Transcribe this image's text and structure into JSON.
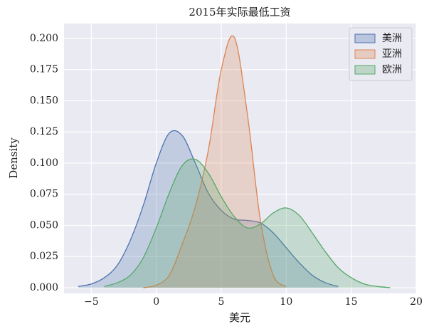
{
  "chart_data": {
    "type": "kde",
    "title": "2015年实际最低工资",
    "xlabel": "美元",
    "ylabel": "Density",
    "x": [
      -6,
      -5,
      -4,
      -3,
      -2,
      -1,
      0,
      1,
      2,
      3,
      4,
      5,
      6,
      7,
      8,
      9,
      10,
      11,
      12,
      13,
      14,
      15,
      16,
      17,
      18,
      19
    ],
    "series": [
      {
        "name": "美洲",
        "color": "#4c72b0",
        "values": [
          0.001,
          0.003,
          0.008,
          0.018,
          0.038,
          0.066,
          0.1,
          0.124,
          0.122,
          0.1,
          0.076,
          0.062,
          0.055,
          0.054,
          0.052,
          0.044,
          0.032,
          0.02,
          0.01,
          0.004,
          0.001,
          null,
          null,
          null,
          null,
          null
        ]
      },
      {
        "name": "亚洲",
        "color": "#dd8452",
        "values": [
          null,
          null,
          null,
          null,
          null,
          0.0,
          0.002,
          0.01,
          0.035,
          0.065,
          0.11,
          0.175,
          0.201,
          0.14,
          0.055,
          0.01,
          0.001,
          null,
          null,
          null,
          null,
          null,
          null,
          null,
          null,
          null
        ]
      },
      {
        "name": "欧洲",
        "color": "#55a868",
        "values": [
          null,
          null,
          0.001,
          0.004,
          0.01,
          0.024,
          0.048,
          0.076,
          0.098,
          0.103,
          0.092,
          0.073,
          0.057,
          0.048,
          0.051,
          0.06,
          0.064,
          0.058,
          0.044,
          0.029,
          0.016,
          0.008,
          0.003,
          0.001,
          0.0,
          null
        ]
      }
    ],
    "xlim": [
      -7.1,
      20
    ],
    "ylim": [
      -0.0046,
      0.212
    ],
    "xticks": [
      {
        "value": -5,
        "label": "−5"
      },
      0,
      5,
      10,
      15,
      20
    ],
    "yticks": [
      {
        "value": 0,
        "label": "0.000"
      },
      {
        "value": 0.025,
        "label": "0.025"
      },
      {
        "value": 0.05,
        "label": "0.050"
      },
      {
        "value": 0.075,
        "label": "0.075"
      },
      {
        "value": 0.1,
        "label": "0.100"
      },
      {
        "value": 0.125,
        "label": "0.125"
      },
      {
        "value": 0.15,
        "label": "0.150"
      },
      {
        "value": 0.175,
        "label": "0.175"
      },
      {
        "value": 0.2,
        "label": "0.200"
      }
    ],
    "grid": true,
    "legend": "upper right"
  }
}
